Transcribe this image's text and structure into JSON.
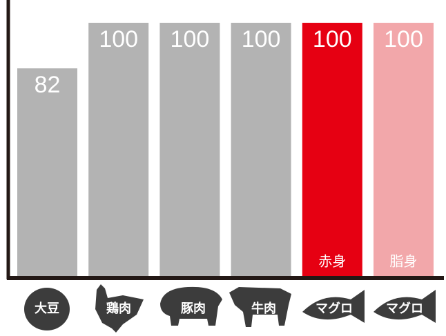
{
  "chart_data": {
    "type": "bar",
    "categories": [
      "大豆",
      "鶏肉",
      "豚肉",
      "牛肉",
      "マグロ",
      "マグロ"
    ],
    "values": [
      82,
      100,
      100,
      100,
      100,
      100
    ],
    "colors": [
      "#b3b3b3",
      "#b3b3b3",
      "#b3b3b3",
      "#b3b3b3",
      "#e60012",
      "#f2a7aa"
    ],
    "bar_labels": [
      null,
      null,
      null,
      null,
      "赤身",
      "脂身"
    ],
    "ylim": [
      0,
      109
    ]
  }
}
